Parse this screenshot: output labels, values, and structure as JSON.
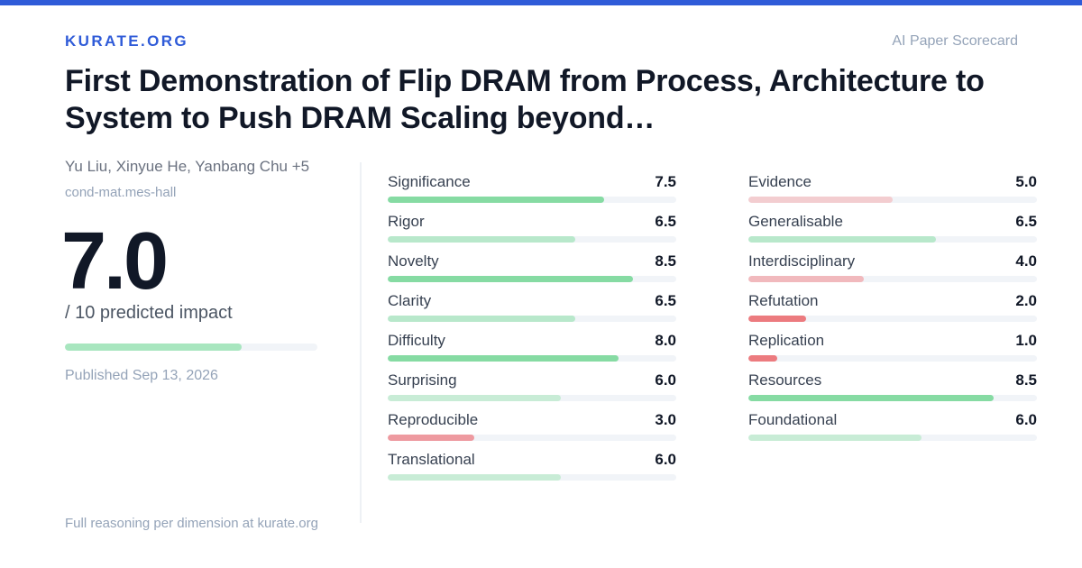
{
  "brand": "KURATE.ORG",
  "tagline": "AI Paper Scorecard",
  "paper": {
    "title": "First Demonstration of Flip DRAM from Process, Architecture to System to Push DRAM Scaling beyond…",
    "authors": "Yu Liu, Xinyue He, Yanbang Chu +5",
    "category": "cond-mat.mes-hall",
    "published": "Published Sep 13, 2026"
  },
  "overall": {
    "score": "7.0",
    "subtitle": "/ 10 predicted impact",
    "fraction": 0.7,
    "color": "#a8e6bf"
  },
  "footer": "Full reasoning per dimension at kurate.org",
  "colors": {
    "accent": "#2f5bd8",
    "high": "#86dba3",
    "mid": "#c8ecd6",
    "low_light": "#f3cdd0",
    "low": "#ee9aa0",
    "very_low": "#ec7b7f"
  },
  "metrics_left": [
    {
      "label": "Significance",
      "value": "7.5",
      "score": 7.5,
      "color": "#86dba3"
    },
    {
      "label": "Rigor",
      "value": "6.5",
      "score": 6.5,
      "color": "#b8e8cb"
    },
    {
      "label": "Novelty",
      "value": "8.5",
      "score": 8.5,
      "color": "#86dba3"
    },
    {
      "label": "Clarity",
      "value": "6.5",
      "score": 6.5,
      "color": "#b8e8cb"
    },
    {
      "label": "Difficulty",
      "value": "8.0",
      "score": 8.0,
      "color": "#86dba3"
    },
    {
      "label": "Surprising",
      "value": "6.0",
      "score": 6.0,
      "color": "#c8ecd6"
    },
    {
      "label": "Reproducible",
      "value": "3.0",
      "score": 3.0,
      "color": "#ee9aa0"
    },
    {
      "label": "Translational",
      "value": "6.0",
      "score": 6.0,
      "color": "#c8ecd6"
    }
  ],
  "metrics_right": [
    {
      "label": "Evidence",
      "value": "5.0",
      "score": 5.0,
      "color": "#f3cdd0"
    },
    {
      "label": "Generalisable",
      "value": "6.5",
      "score": 6.5,
      "color": "#b8e8cb"
    },
    {
      "label": "Interdisciplinary",
      "value": "4.0",
      "score": 4.0,
      "color": "#f1b9bd"
    },
    {
      "label": "Refutation",
      "value": "2.0",
      "score": 2.0,
      "color": "#ec7b7f"
    },
    {
      "label": "Replication",
      "value": "1.0",
      "score": 1.0,
      "color": "#ec7b7f"
    },
    {
      "label": "Resources",
      "value": "8.5",
      "score": 8.5,
      "color": "#86dba3"
    },
    {
      "label": "Foundational",
      "value": "6.0",
      "score": 6.0,
      "color": "#c8ecd6"
    }
  ]
}
